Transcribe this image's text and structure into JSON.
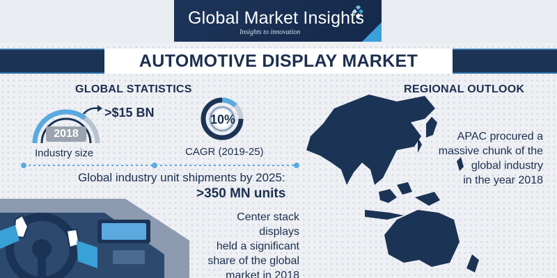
{
  "header": {
    "brand_name": "Global Market Insights",
    "brand_tagline": "Insights to innovation",
    "brand_color": "#1d3559",
    "accent_color": "#3aa0d8",
    "logo_icon": "diamond-cluster-icon"
  },
  "banner": {
    "title": "AUTOMOTIVE DISPLAY MARKET"
  },
  "global_statistics": {
    "heading": "GLOBAL STATISTICS",
    "industry_size": {
      "value": ">$15 BN",
      "year": "2018",
      "label": "Industry size",
      "icon": "gauge-icon"
    },
    "cagr": {
      "value": "10%",
      "label": "CAGR (2019-25)",
      "icon": "donut-chart-icon"
    }
  },
  "shipments": {
    "line1": "Global industry unit shipments by 2025:",
    "value": ">350 MN units"
  },
  "center_stack": {
    "lines": [
      "Center stack displays",
      "held a significant",
      "share of the global",
      "market in 2018"
    ]
  },
  "regional_outlook": {
    "heading": "REGIONAL OUTLOOK",
    "lines": [
      "APAC procured a",
      "massive chunk of the",
      "global industry",
      "in the year 2018"
    ],
    "map_icon": "apac-map-icon"
  },
  "illustration": {
    "icon": "car-dashboard-icon"
  }
}
